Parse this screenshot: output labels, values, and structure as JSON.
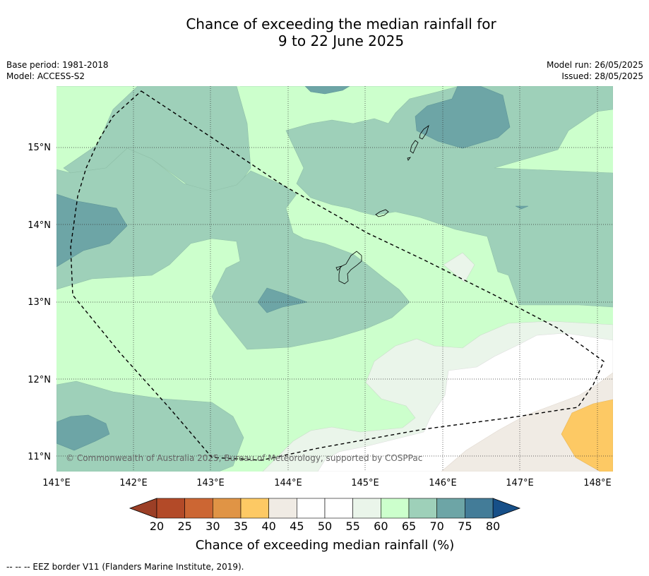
{
  "title": {
    "line1": "Chance of exceeding the median rainfall for",
    "line2": "9 to 22 June 2025"
  },
  "meta_left": {
    "base_period": "Base period: 1981-2018",
    "model": "Model: ACCESS-S2"
  },
  "meta_right": {
    "model_run": "Model run: 26/05/2025",
    "issued": "Issued: 28/05/2025"
  },
  "map": {
    "lon_range": [
      141,
      148.2
    ],
    "lat_range": [
      10.8,
      15.8
    ],
    "lon_ticks": [
      "141°E",
      "142°E",
      "143°E",
      "144°E",
      "145°E",
      "146°E",
      "147°E",
      "148°E"
    ],
    "lat_ticks": [
      "11°N",
      "12°N",
      "13°N",
      "14°N",
      "15°N"
    ],
    "gridlines": "dotted",
    "copyright": "© Commonwealth of Australia 2025, Bureau of Meteorology, supported by COSPPac"
  },
  "colorbar": {
    "label": "Chance of exceeding median rainfall (%)",
    "ticks": [
      "20",
      "25",
      "30",
      "35",
      "40",
      "45",
      "50",
      "55",
      "60",
      "65",
      "70",
      "75",
      "80"
    ],
    "colors": [
      "#b34a28",
      "#cc6633",
      "#e09445",
      "#fdc964",
      "#f0ebe4",
      "#ffffff",
      "#ffffff",
      "#eaf5ea",
      "#ccffcc",
      "#9ed0b9",
      "#6da5a6",
      "#437c98"
    ],
    "under_color": "#9c3f26",
    "over_color": "#174f88"
  },
  "footnote": "--  --  -- EEZ border V11 (Flanders Marine Institute, 2019)."
}
